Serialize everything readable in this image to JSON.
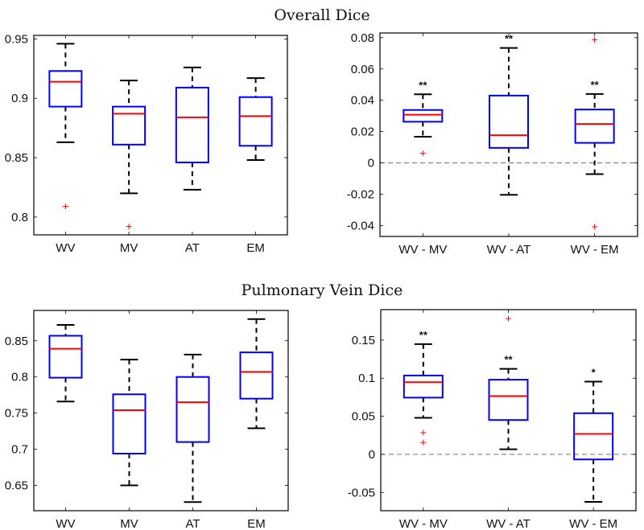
{
  "figure": {
    "titles": [
      "Overall Dice",
      "Pulmonary Vein Dice"
    ]
  },
  "colors": {
    "box": "#0000ff",
    "median": "#ff0000",
    "whisker": "#000000",
    "outlier": "#ff0000",
    "zero_line": "#808080",
    "axis": "#000000"
  },
  "chart_data": [
    {
      "type": "box",
      "group_title": "Overall Dice",
      "title": "",
      "xlabel": "",
      "ylabel": "",
      "ylim": [
        0.785,
        0.953
      ],
      "yticks": [
        0.8,
        0.85,
        0.9,
        0.95
      ],
      "ytick_labels": [
        "0.8",
        "0.85",
        "0.9",
        "0.95"
      ],
      "zero_line": false,
      "categories": [
        "WV",
        "MV",
        "AT",
        "EM"
      ],
      "boxes": [
        {
          "label": "WV",
          "whisker_low": 0.863,
          "q1": 0.893,
          "median": 0.914,
          "q3": 0.923,
          "whisker_high": 0.946,
          "outliers": [
            0.809
          ],
          "significance": ""
        },
        {
          "label": "MV",
          "whisker_low": 0.82,
          "q1": 0.861,
          "median": 0.887,
          "q3": 0.893,
          "whisker_high": 0.915,
          "outliers": [
            0.792
          ],
          "significance": ""
        },
        {
          "label": "AT",
          "whisker_low": 0.823,
          "q1": 0.846,
          "median": 0.884,
          "q3": 0.909,
          "whisker_high": 0.926,
          "outliers": [],
          "significance": ""
        },
        {
          "label": "EM",
          "whisker_low": 0.848,
          "q1": 0.86,
          "median": 0.885,
          "q3": 0.901,
          "whisker_high": 0.917,
          "outliers": [],
          "significance": ""
        }
      ]
    },
    {
      "type": "box",
      "group_title": "Overall Dice",
      "title": "",
      "xlabel": "",
      "ylabel": "",
      "ylim": [
        -0.047,
        0.083
      ],
      "yticks": [
        -0.04,
        -0.02,
        0,
        0.02,
        0.04,
        0.06,
        0.08
      ],
      "ytick_labels": [
        "-0.04",
        "-0.02",
        "0",
        "0.02",
        "0.04",
        "0.06",
        "0.08"
      ],
      "zero_line": true,
      "categories": [
        "WV - MV",
        "WV - AT",
        "WV - EM"
      ],
      "boxes": [
        {
          "label": "WV - MV",
          "whisker_low": 0.0167,
          "q1": 0.0263,
          "median": 0.0308,
          "q3": 0.0338,
          "whisker_high": 0.0438,
          "outliers": [
            0.0061
          ],
          "significance": "**"
        },
        {
          "label": "WV - AT",
          "whisker_low": -0.0204,
          "q1": 0.0096,
          "median": 0.0177,
          "q3": 0.043,
          "whisker_high": 0.0734,
          "outliers": [],
          "significance": "**"
        },
        {
          "label": "WV - EM",
          "whisker_low": -0.0072,
          "q1": 0.0128,
          "median": 0.0249,
          "q3": 0.0341,
          "whisker_high": 0.044,
          "outliers": [
            0.0786,
            -0.0408
          ],
          "significance": "**"
        }
      ]
    },
    {
      "type": "box",
      "group_title": "Pulmonary Vein Dice",
      "title": "",
      "xlabel": "",
      "ylabel": "",
      "ylim": [
        0.615,
        0.892
      ],
      "yticks": [
        0.65,
        0.7,
        0.75,
        0.8,
        0.85
      ],
      "ytick_labels": [
        "0.65",
        "0.7",
        "0.75",
        "0.8",
        "0.85"
      ],
      "zero_line": false,
      "categories": [
        "WV",
        "MV",
        "AT",
        "EM"
      ],
      "boxes": [
        {
          "label": "WV",
          "whisker_low": 0.766,
          "q1": 0.799,
          "median": 0.839,
          "q3": 0.857,
          "whisker_high": 0.872,
          "outliers": [],
          "significance": ""
        },
        {
          "label": "MV",
          "whisker_low": 0.65,
          "q1": 0.694,
          "median": 0.754,
          "q3": 0.776,
          "whisker_high": 0.824,
          "outliers": [],
          "significance": ""
        },
        {
          "label": "AT",
          "whisker_low": 0.627,
          "q1": 0.71,
          "median": 0.765,
          "q3": 0.8,
          "whisker_high": 0.831,
          "outliers": [],
          "significance": ""
        },
        {
          "label": "EM",
          "whisker_low": 0.729,
          "q1": 0.77,
          "median": 0.807,
          "q3": 0.834,
          "whisker_high": 0.88,
          "outliers": [],
          "significance": ""
        }
      ]
    },
    {
      "type": "box",
      "group_title": "Pulmonary Vein Dice",
      "title": "",
      "xlabel": "",
      "ylabel": "",
      "ylim": [
        -0.074,
        0.19
      ],
      "yticks": [
        -0.05,
        0,
        0.05,
        0.1,
        0.15
      ],
      "ytick_labels": [
        "-0.05",
        "0",
        "0.05",
        "0.1",
        "0.15"
      ],
      "zero_line": true,
      "categories": [
        "WV - MV",
        "WV - AT",
        "WV - EM"
      ],
      "boxes": [
        {
          "label": "WV - MV",
          "whisker_low": 0.048,
          "q1": 0.0745,
          "median": 0.0947,
          "q3": 0.1035,
          "whisker_high": 0.1447,
          "outliers": [
            0.0285,
            0.0155
          ],
          "significance": "**"
        },
        {
          "label": "WV - AT",
          "whisker_low": 0.0067,
          "q1": 0.0451,
          "median": 0.0765,
          "q3": 0.098,
          "whisker_high": 0.1123,
          "outliers": [
            0.1783
          ],
          "significance": "**"
        },
        {
          "label": "WV - EM",
          "whisker_low": -0.0624,
          "q1": -0.0067,
          "median": 0.0268,
          "q3": 0.054,
          "whisker_high": 0.0955,
          "outliers": [],
          "significance": "*"
        }
      ]
    }
  ]
}
